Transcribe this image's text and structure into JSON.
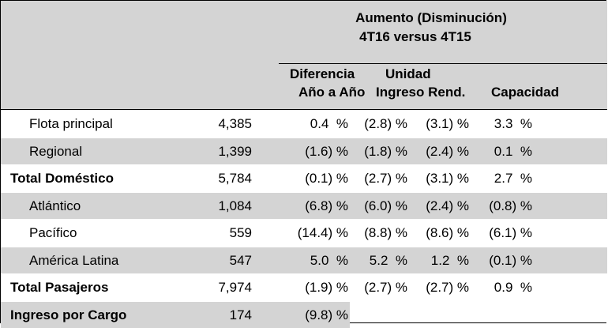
{
  "header": {
    "title_line1": "Aumento (Disminución)",
    "title_line2": "4T16 versus 4T15",
    "col_diff_line1": "Diferencia",
    "col_diff_line2": "Año a Año",
    "col_unit_line1": "Unidad",
    "col_unit_line2": "Ingreso Rend.",
    "col_capacity": "Capacidad"
  },
  "rows": [
    {
      "label": "Flota principal",
      "value": "4,385",
      "diff": "0.4  %",
      "unit": "(2.8) %",
      "rend": "(3.1) %",
      "cap": "3.3  %",
      "bold": false,
      "shaded": false
    },
    {
      "label": "Regional",
      "value": "1,399",
      "diff": "(1.6) %",
      "unit": "(1.8) %",
      "rend": "(2.4) %",
      "cap": "0.1  %",
      "bold": false,
      "shaded": true
    },
    {
      "label": "Total Doméstico",
      "value": "5,784",
      "diff": "(0.1) %",
      "unit": "(2.7) %",
      "rend": "(3.1) %",
      "cap": "2.7  %",
      "bold": true,
      "shaded": false
    },
    {
      "label": "Atlántico",
      "value": "1,084",
      "diff": "(6.8) %",
      "unit": "(6.0) %",
      "rend": "(2.4) %",
      "cap": "(0.8) %",
      "bold": false,
      "shaded": true
    },
    {
      "label": "Pacífico",
      "value": "559",
      "diff": "(14.4) %",
      "unit": "(8.8) %",
      "rend": "(8.6) %",
      "cap": "(6.1) %",
      "bold": false,
      "shaded": false
    },
    {
      "label": "América Latina",
      "value": "547",
      "diff": "5.0  %",
      "unit": "5.2  %",
      "rend": "1.2  %",
      "cap": "(0.1) %",
      "bold": false,
      "shaded": true
    },
    {
      "label": "Total Pasajeros",
      "value": "7,974",
      "diff": "(1.9) %",
      "unit": "(2.7) %",
      "rend": "(2.7) %",
      "cap": "0.9  %",
      "bold": true,
      "shaded": false
    },
    {
      "label": "Ingreso por Cargo",
      "value": "174",
      "diff": "(9.8) %",
      "unit": "",
      "rend": "",
      "cap": "",
      "bold": true,
      "shaded": true
    }
  ]
}
